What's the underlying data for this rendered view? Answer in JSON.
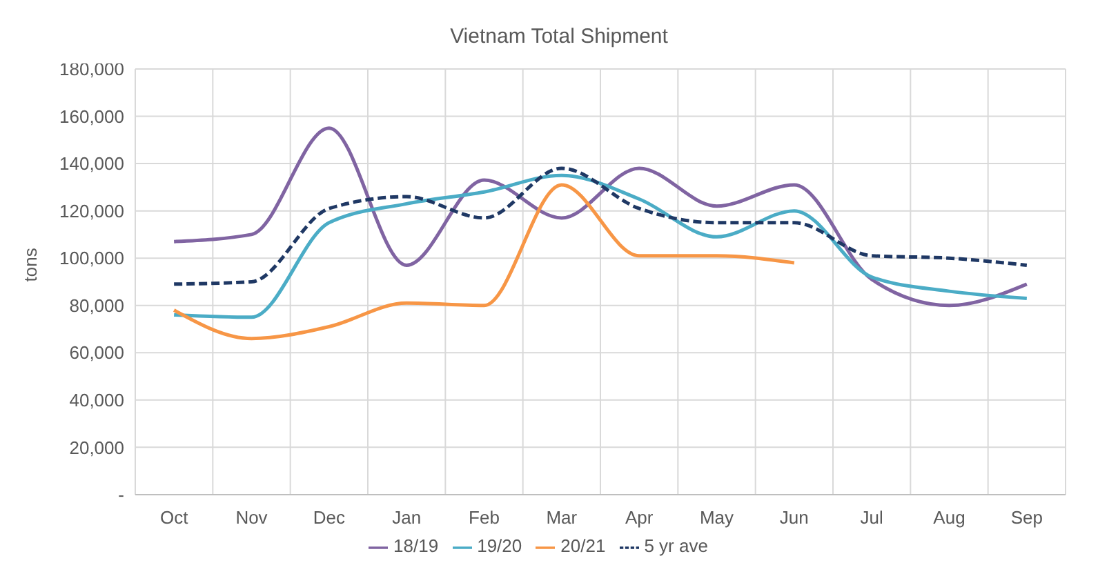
{
  "chart_data": {
    "type": "line",
    "title": "Vietnam Total Shipment",
    "ylabel": "tons",
    "categories": [
      "Oct",
      "Nov",
      "Dec",
      "Jan",
      "Feb",
      "Mar",
      "Apr",
      "May",
      "Jun",
      "Jul",
      "Aug",
      "Sep"
    ],
    "series": [
      {
        "name": "18/19",
        "color": "#8064a2",
        "values": [
          107000,
          110000,
          155000,
          97000,
          133000,
          117000,
          138000,
          122000,
          131000,
          91000,
          80000,
          89000
        ]
      },
      {
        "name": "19/20",
        "color": "#4bacc6",
        "values": [
          76000,
          75000,
          115000,
          123000,
          128000,
          135000,
          125000,
          109000,
          120000,
          92000,
          86000,
          83000
        ]
      },
      {
        "name": "20/21",
        "color": "#f79646",
        "values": [
          78000,
          66000,
          71000,
          81000,
          80000,
          131000,
          101000,
          101000,
          98000,
          null,
          null,
          null
        ]
      },
      {
        "name": "5 yr ave",
        "color": "#1f3864",
        "line_style": "dashed",
        "values": [
          89000,
          90000,
          121000,
          126000,
          117000,
          138000,
          121000,
          115000,
          115000,
          101000,
          100000,
          97000
        ]
      }
    ],
    "ylim": [
      0,
      180000
    ],
    "yticks": [
      {
        "value": 0,
        "label": "-"
      },
      {
        "value": 20000,
        "label": "20,000"
      },
      {
        "value": 40000,
        "label": "40,000"
      },
      {
        "value": 60000,
        "label": "60,000"
      },
      {
        "value": 80000,
        "label": "80,000"
      },
      {
        "value": 100000,
        "label": "100,000"
      },
      {
        "value": 120000,
        "label": "120,000"
      },
      {
        "value": 140000,
        "label": "140,000"
      },
      {
        "value": 160000,
        "label": "160,000"
      },
      {
        "value": 180000,
        "label": "180,000"
      }
    ],
    "grid": true,
    "legend": "bottom",
    "marker": "none"
  }
}
